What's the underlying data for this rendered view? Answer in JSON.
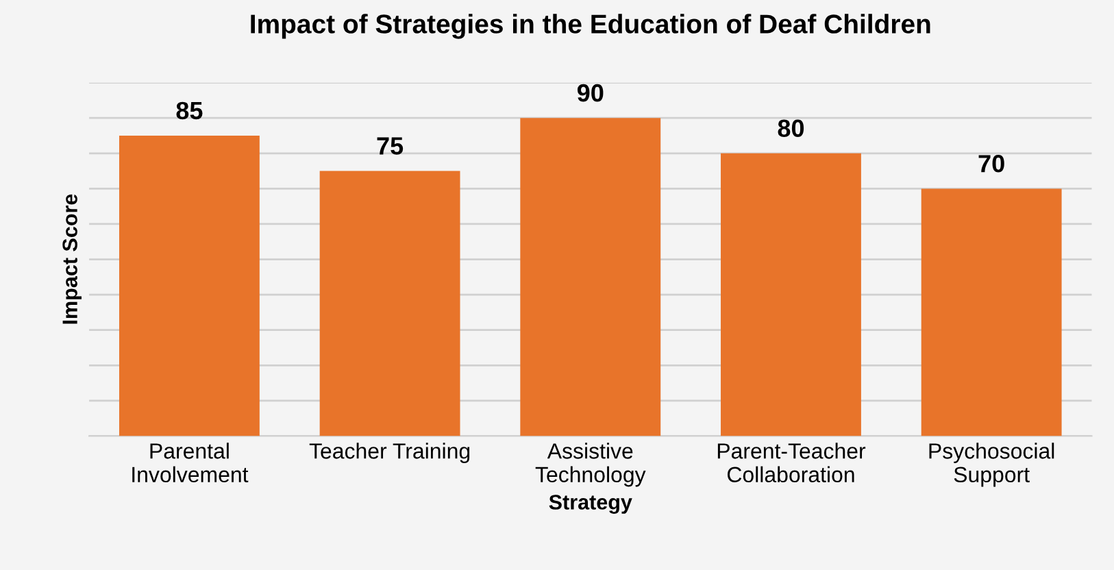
{
  "chart_data": {
    "type": "bar",
    "title": "Impact of Strategies in the Education of Deaf Children",
    "xlabel": "Strategy",
    "ylabel": "Impact Score",
    "categories": [
      "Parental\nInvolvement",
      "Teacher Training",
      "Assistive\nTechnology",
      "Parent-Teacher\nCollaboration",
      "Psychosocial\nSupport"
    ],
    "values": [
      85,
      75,
      90,
      80,
      70
    ],
    "color": "#e8742a",
    "ylim": [
      0,
      100
    ],
    "yticks": [
      {
        "value": 0,
        "label": null
      },
      {
        "value": 10,
        "label": null
      },
      {
        "value": 20,
        "label": null
      },
      {
        "value": 30,
        "label": null
      },
      {
        "value": 40,
        "label": null
      },
      {
        "value": 50,
        "label": null
      },
      {
        "value": 60,
        "label": null
      },
      {
        "value": 70,
        "label": null
      },
      {
        "value": 80,
        "label": null
      },
      {
        "value": 90,
        "label": null
      },
      {
        "value": 100,
        "label": null
      }
    ],
    "grid": "y",
    "tick_labels": "x",
    "data_labels": true
  }
}
